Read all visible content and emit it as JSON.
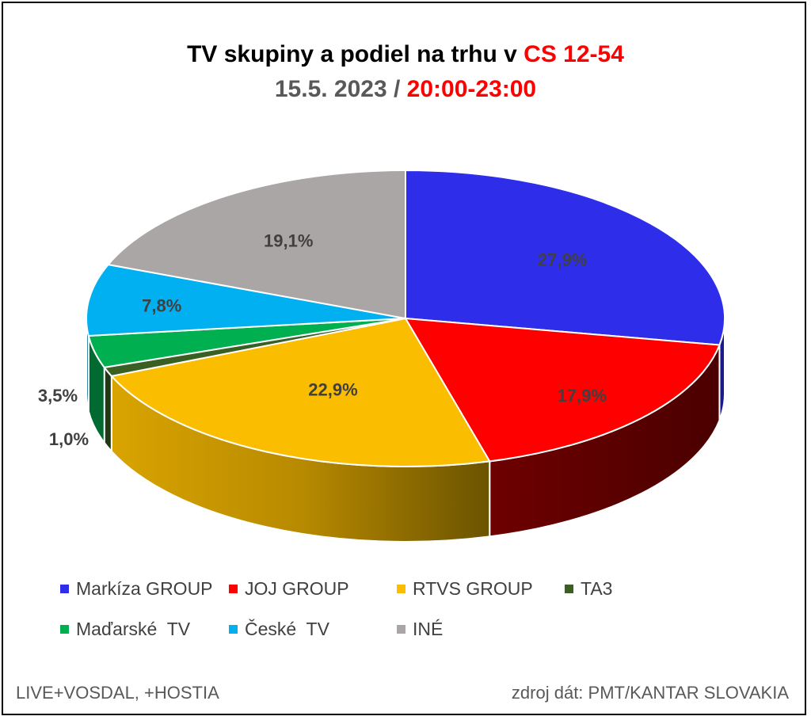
{
  "title": {
    "line1_prefix": "TV skupiny a podiel na trhu v ",
    "line1_highlight": "CS 12-54",
    "line2_prefix": "15.5. 2023 / ",
    "line2_highlight": "20:00-23:00"
  },
  "chart_data": {
    "type": "pie",
    "style": "3d",
    "slices": [
      {
        "label": "Markíza GROUP",
        "value": 27.9,
        "display": "27,9%",
        "color": "#2e2eea",
        "side_color": "#1a1a8c"
      },
      {
        "label": "JOJ GROUP",
        "value": 17.9,
        "display": "17,9%",
        "color": "#ff0000",
        "side_color": "#660000"
      },
      {
        "label": "RTVS GROUP",
        "value": 22.9,
        "display": "22,9%",
        "color": "#fbbd00",
        "side_color": "#c79100"
      },
      {
        "label": "TA3",
        "value": 1.0,
        "display": "1,0%",
        "color": "#3a5f22",
        "side_color": "#223814"
      },
      {
        "label": "Maďarské  TV",
        "value": 3.5,
        "display": "3,5%",
        "color": "#00b050",
        "side_color": "#006a30"
      },
      {
        "label": "České  TV",
        "value": 7.8,
        "display": "7,8%",
        "color": "#00b0f0",
        "side_color": "#006a90"
      },
      {
        "label": "INÉ",
        "value": 19.1,
        "display": "19,1%",
        "color": "#aaa6a6",
        "side_color": "#6e6a6a"
      }
    ],
    "legend_position": "bottom"
  },
  "footer": {
    "left": "LIVE+VOSDAL, +HOSTIA",
    "right": "zdroj dát: PMT/KANTAR SLOVAKIA"
  }
}
